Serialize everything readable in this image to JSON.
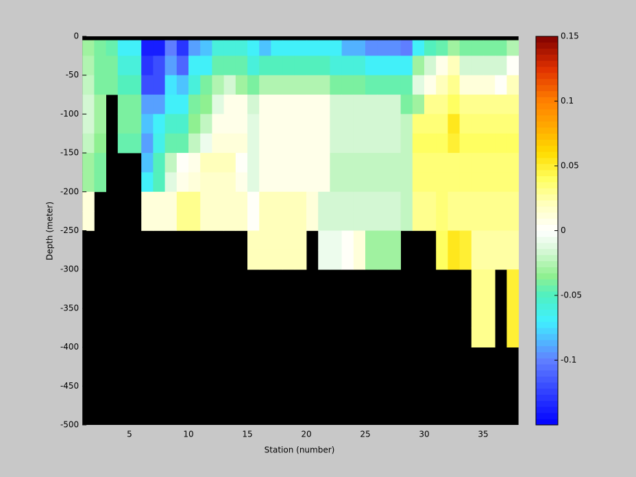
{
  "chart_data": {
    "type": "heatmap",
    "xlabel": "Station (number)",
    "ylabel": "Depth (meter)",
    "xlim": [
      1,
      38
    ],
    "ylim": [
      -500,
      0
    ],
    "xticks": [
      5,
      10,
      15,
      20,
      25,
      30,
      35
    ],
    "yticks": [
      0,
      -50,
      -100,
      -150,
      -200,
      -250,
      -300,
      -350,
      -400,
      -450,
      -500
    ],
    "x_edges": [
      1,
      2,
      3,
      4,
      5,
      6,
      7,
      8,
      9,
      10,
      11,
      12,
      13,
      14,
      15,
      16,
      17,
      18,
      19,
      20,
      21,
      22,
      23,
      24,
      25,
      26,
      27,
      28,
      29,
      30,
      31,
      32,
      33,
      34,
      35,
      36,
      37,
      38
    ],
    "y_edges": [
      -5,
      -25,
      -50,
      -75,
      -100,
      -125,
      -150,
      -175,
      -200,
      -225,
      -250,
      -275,
      -300,
      -325,
      -350,
      -375,
      -400
    ],
    "z": [
      [
        -0.03,
        -0.04,
        -0.045,
        -0.07,
        -0.07,
        -0.14,
        -0.14,
        -0.1,
        -0.13,
        -0.09,
        -0.08,
        -0.06,
        -0.06,
        -0.06,
        -0.07,
        -0.08,
        -0.07,
        -0.07,
        -0.07,
        -0.07,
        -0.07,
        -0.07,
        -0.085,
        -0.085,
        -0.095,
        -0.095,
        -0.095,
        -0.1,
        -0.07,
        -0.05,
        -0.045,
        -0.03,
        -0.04,
        -0.04,
        -0.04,
        -0.04,
        -0.025
      ],
      [
        -0.025,
        -0.04,
        -0.04,
        -0.06,
        -0.06,
        -0.13,
        -0.12,
        -0.09,
        -0.11,
        -0.07,
        -0.07,
        -0.045,
        -0.045,
        -0.045,
        -0.06,
        -0.05,
        -0.05,
        -0.05,
        -0.05,
        -0.05,
        -0.05,
        -0.06,
        -0.06,
        -0.06,
        -0.07,
        -0.07,
        -0.07,
        -0.07,
        -0.03,
        -0.015,
        0.005,
        0.02,
        -0.015,
        -0.015,
        -0.015,
        -0.015,
        0
      ],
      [
        -0.02,
        -0.04,
        -0.04,
        -0.05,
        -0.05,
        -0.12,
        -0.12,
        -0.075,
        -0.08,
        -0.06,
        -0.04,
        -0.025,
        -0.015,
        -0.03,
        -0.04,
        -0.025,
        -0.025,
        -0.025,
        -0.025,
        -0.025,
        -0.025,
        -0.04,
        -0.04,
        -0.04,
        -0.045,
        -0.045,
        -0.045,
        -0.045,
        -0.01,
        0.005,
        0.02,
        0.03,
        0.01,
        0.01,
        0.01,
        0,
        0.02
      ],
      [
        -0.015,
        -0.03,
        null,
        -0.04,
        -0.04,
        -0.09,
        -0.09,
        -0.07,
        -0.07,
        -0.04,
        -0.035,
        -0.01,
        0.005,
        0.005,
        -0.015,
        0.005,
        0.005,
        0.005,
        0.005,
        0.005,
        0.005,
        -0.015,
        -0.015,
        -0.015,
        -0.015,
        -0.015,
        -0.015,
        -0.04,
        -0.03,
        0.03,
        0.03,
        0.04,
        0.03,
        0.03,
        0.03,
        0.03,
        0.03
      ],
      [
        -0.015,
        -0.03,
        null,
        -0.04,
        -0.04,
        -0.08,
        -0.07,
        -0.055,
        -0.055,
        -0.035,
        -0.02,
        0.005,
        0.005,
        0.005,
        -0.01,
        0.005,
        0.005,
        0.005,
        0.005,
        0.005,
        0.005,
        -0.015,
        -0.015,
        -0.015,
        -0.015,
        -0.015,
        -0.015,
        -0.02,
        0.035,
        0.035,
        0.035,
        0.055,
        0.035,
        0.035,
        0.035,
        0.035,
        0.035
      ],
      [
        -0.02,
        -0.035,
        null,
        -0.045,
        -0.045,
        -0.09,
        -0.065,
        -0.045,
        -0.045,
        -0.02,
        -0.005,
        0.01,
        0.01,
        0.01,
        -0.01,
        0.005,
        0.005,
        0.005,
        0.005,
        0.005,
        0.005,
        -0.015,
        -0.015,
        -0.015,
        -0.015,
        -0.015,
        -0.015,
        -0.02,
        0.04,
        0.04,
        0.04,
        0.05,
        0.04,
        0.04,
        0.04,
        0.04,
        0.04
      ],
      [
        -0.03,
        -0.04,
        null,
        null,
        null,
        -0.08,
        -0.05,
        -0.02,
        0,
        0.005,
        0.02,
        0.02,
        0.02,
        0,
        -0.01,
        0.005,
        0.005,
        0.005,
        0.005,
        0.005,
        0.005,
        -0.02,
        -0.02,
        -0.02,
        -0.02,
        -0.02,
        -0.02,
        -0.02,
        0.035,
        0.035,
        0.035,
        0.035,
        0.035,
        0.035,
        0.035,
        0.035,
        0.035
      ],
      [
        -0.03,
        -0.04,
        null,
        null,
        null,
        -0.07,
        -0.05,
        -0.01,
        0.005,
        0.01,
        0.015,
        0.015,
        0.015,
        0.005,
        -0.01,
        0.005,
        0.005,
        0.005,
        0.005,
        0.005,
        0.005,
        -0.02,
        -0.02,
        -0.02,
        -0.02,
        -0.02,
        -0.02,
        -0.02,
        0.035,
        0.035,
        0.035,
        0.035,
        0.035,
        0.035,
        0.035,
        0.035,
        0.035
      ],
      [
        0.01,
        null,
        null,
        null,
        null,
        0.01,
        0.01,
        0.01,
        0.03,
        0.03,
        0.015,
        0.015,
        0.015,
        0.015,
        0,
        0.02,
        0.02,
        0.02,
        0.02,
        0.01,
        -0.015,
        -0.015,
        -0.015,
        -0.015,
        -0.015,
        -0.015,
        -0.015,
        -0.02,
        0.03,
        0.03,
        0.035,
        0.03,
        0.03,
        0.03,
        0.03,
        0.03,
        0.03
      ],
      [
        0.01,
        null,
        null,
        null,
        null,
        0.01,
        0.01,
        0.01,
        0.03,
        0.03,
        0.015,
        0.015,
        0.015,
        0.015,
        0,
        0.02,
        0.02,
        0.02,
        0.02,
        0.01,
        -0.015,
        -0.015,
        -0.015,
        -0.015,
        -0.015,
        -0.015,
        -0.015,
        -0.02,
        0.03,
        0.03,
        0.035,
        0.03,
        0.03,
        0.03,
        0.03,
        0.03,
        0.03
      ],
      [
        null,
        null,
        null,
        null,
        null,
        null,
        null,
        null,
        null,
        null,
        null,
        null,
        null,
        null,
        0.02,
        0.02,
        0.02,
        0.02,
        0.02,
        null,
        -0.005,
        -0.005,
        0,
        0.01,
        -0.03,
        -0.03,
        -0.03,
        null,
        null,
        null,
        0.04,
        0.055,
        0.05,
        0.025,
        0.025,
        0.025,
        0.025
      ],
      [
        null,
        null,
        null,
        null,
        null,
        null,
        null,
        null,
        null,
        null,
        null,
        null,
        null,
        null,
        0.02,
        0.02,
        0.02,
        0.02,
        0.02,
        null,
        -0.005,
        -0.005,
        0,
        0.01,
        -0.03,
        -0.03,
        -0.03,
        null,
        null,
        null,
        0.04,
        0.055,
        0.05,
        0.025,
        0.025,
        0.025,
        0.025
      ],
      [
        null,
        null,
        null,
        null,
        null,
        null,
        null,
        null,
        null,
        null,
        null,
        null,
        null,
        null,
        null,
        null,
        null,
        null,
        null,
        null,
        null,
        null,
        null,
        null,
        null,
        null,
        null,
        null,
        null,
        null,
        null,
        null,
        null,
        0.03,
        0.03,
        null,
        0.05
      ],
      [
        null,
        null,
        null,
        null,
        null,
        null,
        null,
        null,
        null,
        null,
        null,
        null,
        null,
        null,
        null,
        null,
        null,
        null,
        null,
        null,
        null,
        null,
        null,
        null,
        null,
        null,
        null,
        null,
        null,
        null,
        null,
        null,
        null,
        0.03,
        0.03,
        null,
        0.05
      ],
      [
        null,
        null,
        null,
        null,
        null,
        null,
        null,
        null,
        null,
        null,
        null,
        null,
        null,
        null,
        null,
        null,
        null,
        null,
        null,
        null,
        null,
        null,
        null,
        null,
        null,
        null,
        null,
        null,
        null,
        null,
        null,
        null,
        null,
        0.03,
        0.03,
        null,
        0.05
      ],
      [
        null,
        null,
        null,
        null,
        null,
        null,
        null,
        null,
        null,
        null,
        null,
        null,
        null,
        null,
        null,
        null,
        null,
        null,
        null,
        null,
        null,
        null,
        null,
        null,
        null,
        null,
        null,
        null,
        null,
        null,
        null,
        null,
        null,
        0.03,
        0.03,
        null,
        0.05
      ]
    ],
    "nan_color": "#000000",
    "clim": [
      -0.15,
      0.15
    ],
    "cticks": [
      0.15,
      0.1,
      0.05,
      0,
      -0.05,
      -0.1
    ],
    "colormap_levels": 64,
    "colormap": [
      [
        -0.15,
        "#0000ff"
      ],
      [
        -0.1,
        "#6080ff"
      ],
      [
        -0.07,
        "#40f0ff"
      ],
      [
        -0.05,
        "#50f0c0"
      ],
      [
        -0.035,
        "#90f090"
      ],
      [
        -0.015,
        "#d8f8d8"
      ],
      [
        0,
        "#ffffff"
      ],
      [
        0.02,
        "#ffffc0"
      ],
      [
        0.04,
        "#ffff60"
      ],
      [
        0.06,
        "#ffdd00"
      ],
      [
        0.08,
        "#ffaa00"
      ],
      [
        0.1,
        "#ff8000"
      ],
      [
        0.125,
        "#e03000"
      ],
      [
        0.15,
        "#800000"
      ]
    ]
  }
}
